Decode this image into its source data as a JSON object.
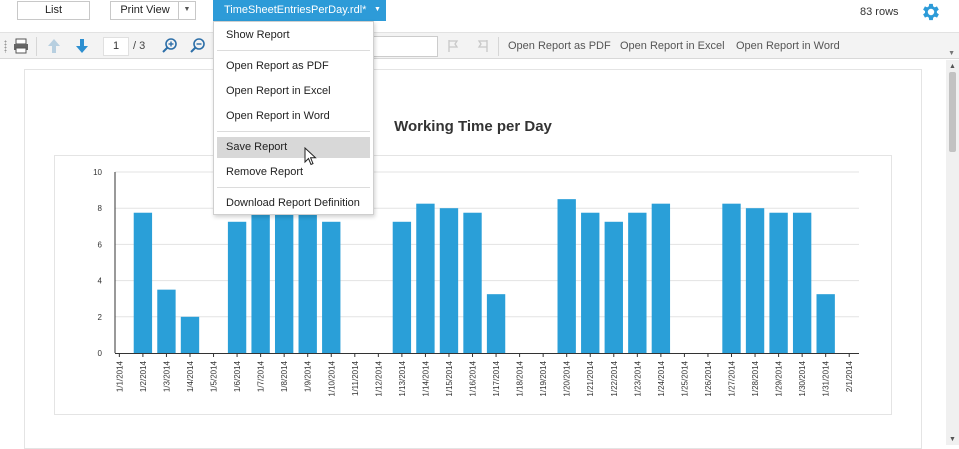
{
  "topbar": {
    "list_label": "List",
    "print_view_label": "Print View",
    "report_label": "TimeSheetEntriesPerDay.rdl*",
    "rows_count": "83 rows"
  },
  "toolbar": {
    "current_page": "1",
    "page_of": "/ 3",
    "find_value": "",
    "open_pdf": "Open Report as PDF",
    "open_excel": "Open Report in Excel",
    "open_word": "Open Report in Word"
  },
  "menu": {
    "items": [
      {
        "label": "Show Report"
      },
      {
        "label": "Open Report as PDF"
      },
      {
        "label": "Open Report in Excel"
      },
      {
        "label": "Open Report in Word"
      },
      {
        "label": "Save Report"
      },
      {
        "label": "Remove Report"
      },
      {
        "label": "Download Report Definition"
      }
    ],
    "highlighted": "Save Report"
  },
  "report": {
    "title": "Working Time per Day"
  },
  "chart_data": {
    "type": "bar",
    "title": "Working Time per Day",
    "xlabel": "",
    "ylabel": "",
    "ylim": [
      0,
      10
    ],
    "yticks": [
      0,
      2,
      4,
      6,
      8,
      10
    ],
    "color": "#2a9fd8",
    "categories": [
      "1/1/2014",
      "1/2/2014",
      "1/3/2014",
      "1/4/2014",
      "1/5/2014",
      "1/6/2014",
      "1/7/2014",
      "1/8/2014",
      "1/9/2014",
      "1/10/2014",
      "1/11/2014",
      "1/12/2014",
      "1/13/2014",
      "1/14/2014",
      "1/15/2014",
      "1/16/2014",
      "1/17/2014",
      "1/18/2014",
      "1/19/2014",
      "1/20/2014",
      "1/21/2014",
      "1/22/2014",
      "1/23/2014",
      "1/24/2014",
      "1/25/2014",
      "1/26/2014",
      "1/27/2014",
      "1/28/2014",
      "1/29/2014",
      "1/30/2014",
      "1/31/2014",
      "2/1/2014"
    ],
    "values": [
      0,
      7.75,
      3.5,
      2,
      0,
      7.25,
      7.75,
      7.75,
      7.75,
      7.25,
      0,
      0,
      7.25,
      8.25,
      8,
      7.75,
      3.25,
      0,
      0,
      8.5,
      7.75,
      7.25,
      7.75,
      8.25,
      0,
      0,
      8.25,
      8,
      7.75,
      7.75,
      3.25,
      0
    ]
  },
  "colors": {
    "accent": "#2d9bd8",
    "gear": "#2d9bd8"
  }
}
